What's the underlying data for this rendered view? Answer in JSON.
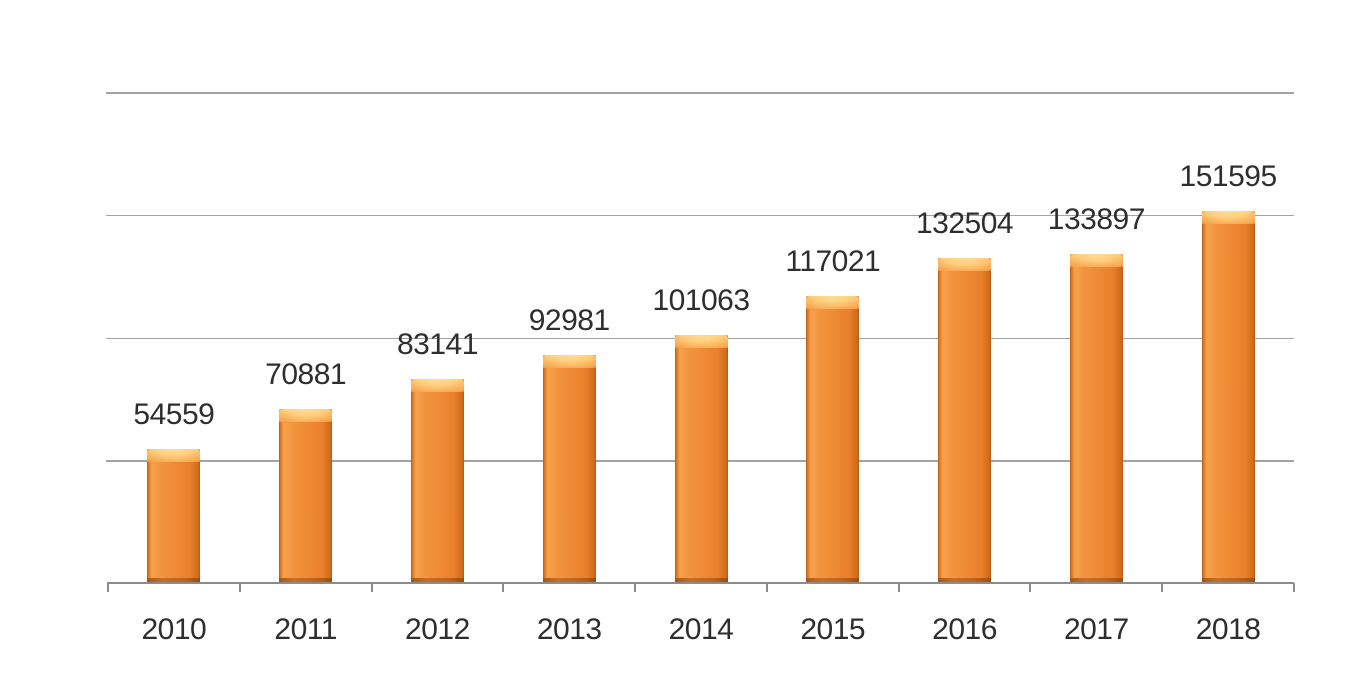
{
  "chart_data": {
    "type": "bar",
    "categories": [
      "2010",
      "2011",
      "2012",
      "2013",
      "2014",
      "2015",
      "2016",
      "2017",
      "2018"
    ],
    "values": [
      54559,
      70881,
      83141,
      92981,
      101063,
      117021,
      132504,
      133897,
      151595
    ],
    "data_labels": [
      "54559",
      "70881",
      "83141",
      "92981",
      "101063",
      "117021",
      "132504",
      "133897",
      "151595"
    ],
    "title": "",
    "xlabel": "",
    "ylabel": "",
    "ylim": [
      0,
      200000
    ],
    "gridline_interval": 50000,
    "grid": "horizontal-only",
    "y_axis_tick_labels_visible": false,
    "legend": "none",
    "data_labels_position": "above-bar"
  },
  "colors": {
    "background": "#ffffff",
    "bar_fill": "#ef8933",
    "bar_highlight": "#ffce7d",
    "bar_edge_dark": "#bf5f16",
    "bar_bottom_shade": "#9e4f12",
    "gridline": "#a3a3a3",
    "axis_line": "#8c8c8c",
    "label_text": "#2e2e2e"
  }
}
